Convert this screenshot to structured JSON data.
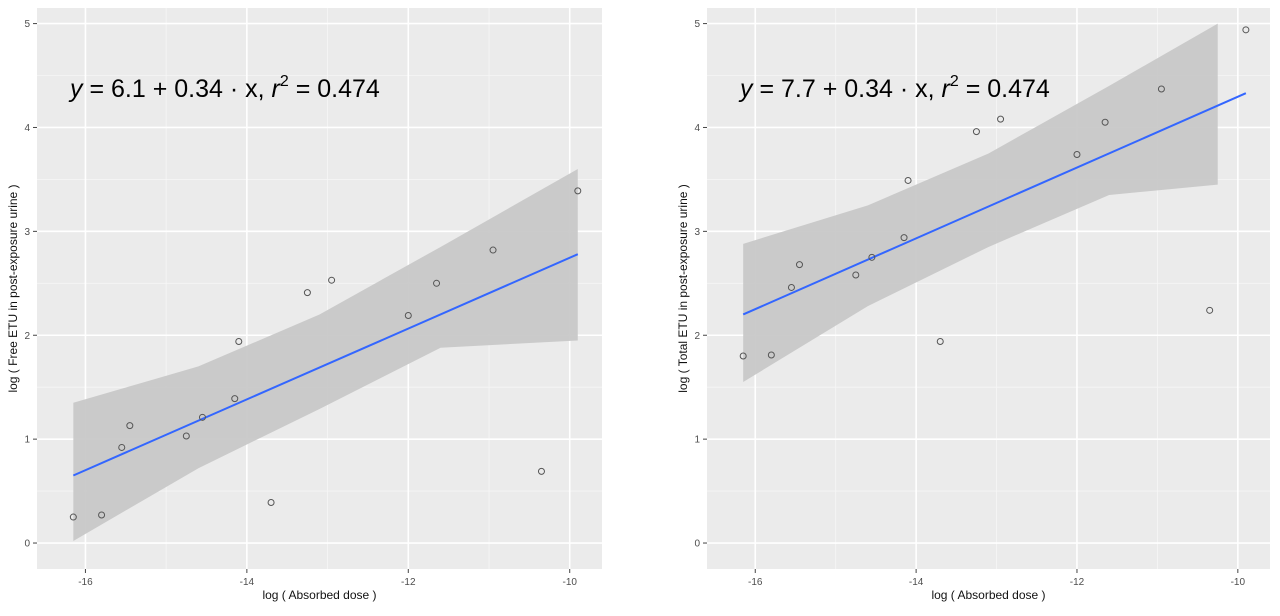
{
  "chart_data": [
    {
      "type": "scatter",
      "equation": {
        "prefix": "y",
        "body": " = 6.1 + 0.34 · x,  ",
        "r_symbol": "r",
        "r_power": "2",
        "r_value": " = 0.474"
      },
      "xlabel": "log ( Absorbed dose )",
      "ylabel": "log ( Free ETU in post-exposure urine )",
      "xticks": [
        -16,
        -14,
        -12,
        -10
      ],
      "xtick_labels": [
        "-16",
        "-14",
        "-12",
        "-10"
      ],
      "yticks": [
        0,
        1,
        2,
        3,
        4,
        5
      ],
      "ytick_labels": [
        "0",
        "1",
        "2",
        "3",
        "4",
        "5"
      ],
      "xlim": [
        -16.6,
        -9.6
      ],
      "ylim": [
        -0.25,
        5.15
      ],
      "grid": true,
      "points": [
        {
          "x": -16.15,
          "y": 0.25
        },
        {
          "x": -15.8,
          "y": 0.27
        },
        {
          "x": -15.55,
          "y": 0.92
        },
        {
          "x": -15.45,
          "y": 1.13
        },
        {
          "x": -14.75,
          "y": 1.03
        },
        {
          "x": -14.55,
          "y": 1.21
        },
        {
          "x": -14.15,
          "y": 1.39
        },
        {
          "x": -14.1,
          "y": 1.94
        },
        {
          "x": -13.7,
          "y": 0.39
        },
        {
          "x": -13.25,
          "y": 2.41
        },
        {
          "x": -12.95,
          "y": 2.53
        },
        {
          "x": -12.0,
          "y": 2.19
        },
        {
          "x": -11.65,
          "y": 2.5
        },
        {
          "x": -10.95,
          "y": 2.82
        },
        {
          "x": -10.35,
          "y": 0.69
        },
        {
          "x": -9.9,
          "y": 3.39
        }
      ],
      "fit": {
        "x": [
          -16.15,
          -9.9
        ],
        "y": [
          0.65,
          2.78
        ],
        "color": "#3366ff"
      },
      "ci_band": {
        "x": [
          -16.15,
          -14.6,
          -13.1,
          -11.6,
          -9.9
        ],
        "upper": [
          1.35,
          1.7,
          2.2,
          2.85,
          3.6
        ],
        "lower": [
          0.02,
          0.72,
          1.29,
          1.88,
          1.95
        ],
        "color": "#c8c8c8"
      },
      "panel_bg": "#ebebeb",
      "point_color": "#555555"
    },
    {
      "type": "scatter",
      "equation": {
        "prefix": "y",
        "body": " = 7.7 + 0.34 · x,  ",
        "r_symbol": "r",
        "r_power": "2",
        "r_value": " = 0.474"
      },
      "xlabel": "log ( Absorbed dose )",
      "ylabel": "log ( Total ETU in post-exposure urine )",
      "xticks": [
        -16,
        -14,
        -12,
        -10
      ],
      "xtick_labels": [
        "-16",
        "-14",
        "-12",
        "-10"
      ],
      "yticks": [
        0,
        1,
        2,
        3,
        4,
        5
      ],
      "ytick_labels": [
        "0",
        "1",
        "2",
        "3",
        "4",
        "5"
      ],
      "xlim": [
        -16.6,
        -9.6
      ],
      "ylim": [
        -0.25,
        5.15
      ],
      "grid": true,
      "points": [
        {
          "x": -16.15,
          "y": 1.8
        },
        {
          "x": -15.8,
          "y": 1.81
        },
        {
          "x": -15.55,
          "y": 2.46
        },
        {
          "x": -15.45,
          "y": 2.68
        },
        {
          "x": -14.75,
          "y": 2.58
        },
        {
          "x": -14.55,
          "y": 2.75
        },
        {
          "x": -14.15,
          "y": 2.94
        },
        {
          "x": -14.1,
          "y": 3.49
        },
        {
          "x": -13.7,
          "y": 1.94
        },
        {
          "x": -13.25,
          "y": 3.96
        },
        {
          "x": -12.95,
          "y": 4.08
        },
        {
          "x": -12.0,
          "y": 3.74
        },
        {
          "x": -11.65,
          "y": 4.05
        },
        {
          "x": -10.95,
          "y": 4.37
        },
        {
          "x": -10.35,
          "y": 2.24
        },
        {
          "x": -9.9,
          "y": 4.94
        }
      ],
      "fit": {
        "x": [
          -16.15,
          -9.9
        ],
        "y": [
          2.2,
          4.33
        ],
        "color": "#3366ff"
      },
      "ci_band": {
        "x": [
          -16.15,
          -14.6,
          -13.1,
          -11.6,
          -10.25
        ],
        "upper": [
          2.88,
          3.25,
          3.75,
          4.4,
          5.0
        ],
        "lower": [
          1.55,
          2.28,
          2.85,
          3.35,
          3.45
        ],
        "color": "#c8c8c8"
      },
      "panel_bg": "#ebebeb",
      "point_color": "#555555"
    }
  ]
}
